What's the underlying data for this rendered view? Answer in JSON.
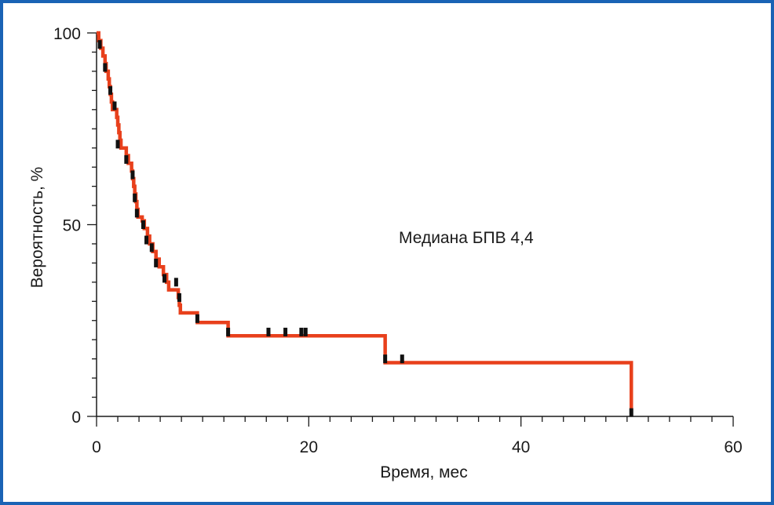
{
  "colors": {
    "frame": "#1a63b5",
    "curve": "#e8401c",
    "censor": "#111111",
    "axis": "#1a1a1a"
  },
  "chart_data": {
    "type": "line",
    "subtype": "kaplan-meier-step",
    "title": "",
    "xlabel": "Время, мес",
    "ylabel": "Вероятность, %",
    "xlim": [
      0,
      60
    ],
    "ylim": [
      0,
      100
    ],
    "x_ticks": [
      0,
      20,
      40,
      60
    ],
    "y_ticks": [
      0,
      50,
      100
    ],
    "x_minor_step": 2,
    "y_minor_step": 5,
    "grid": false,
    "annotation": "Медиана БПВ 4,4",
    "series": [
      {
        "name": "БПВ",
        "steps": [
          [
            0,
            100
          ],
          [
            0.2,
            98
          ],
          [
            0.4,
            96
          ],
          [
            0.6,
            94
          ],
          [
            0.8,
            92
          ],
          [
            0.9,
            90
          ],
          [
            1.1,
            88
          ],
          [
            1.2,
            86
          ],
          [
            1.3,
            84
          ],
          [
            1.4,
            82
          ],
          [
            1.5,
            80
          ],
          [
            1.9,
            78
          ],
          [
            2.0,
            76
          ],
          [
            2.1,
            74
          ],
          [
            2.2,
            72
          ],
          [
            2.3,
            70
          ],
          [
            2.8,
            68
          ],
          [
            3.0,
            66
          ],
          [
            3.3,
            64
          ],
          [
            3.4,
            62
          ],
          [
            3.5,
            60
          ],
          [
            3.6,
            58
          ],
          [
            3.7,
            56
          ],
          [
            3.8,
            54
          ],
          [
            3.9,
            52
          ],
          [
            4.3,
            51
          ],
          [
            4.5,
            49
          ],
          [
            4.8,
            47
          ],
          [
            5.0,
            45
          ],
          [
            5.3,
            43
          ],
          [
            5.6,
            41
          ],
          [
            5.9,
            39
          ],
          [
            6.3,
            37
          ],
          [
            6.6,
            35
          ],
          [
            6.8,
            33
          ],
          [
            7.7,
            31
          ],
          [
            7.8,
            29
          ],
          [
            7.9,
            27
          ],
          [
            9.5,
            24.5
          ],
          [
            12.4,
            21
          ],
          [
            27.2,
            14
          ],
          [
            50.4,
            0
          ]
        ],
        "censored": [
          [
            0.3,
            97
          ],
          [
            0.8,
            91
          ],
          [
            1.3,
            85
          ],
          [
            1.7,
            81
          ],
          [
            2.0,
            71
          ],
          [
            2.8,
            67
          ],
          [
            3.4,
            63
          ],
          [
            3.6,
            57
          ],
          [
            3.8,
            53
          ],
          [
            4.4,
            50
          ],
          [
            4.7,
            46
          ],
          [
            5.2,
            44
          ],
          [
            5.6,
            40
          ],
          [
            6.4,
            36
          ],
          [
            7.5,
            35
          ],
          [
            7.8,
            31
          ],
          [
            9.5,
            25.5
          ],
          [
            12.4,
            22
          ],
          [
            16.2,
            22
          ],
          [
            17.8,
            22
          ],
          [
            19.3,
            22
          ],
          [
            19.7,
            22
          ],
          [
            27.2,
            15
          ],
          [
            28.8,
            15
          ],
          [
            50.4,
            1
          ]
        ]
      }
    ]
  }
}
